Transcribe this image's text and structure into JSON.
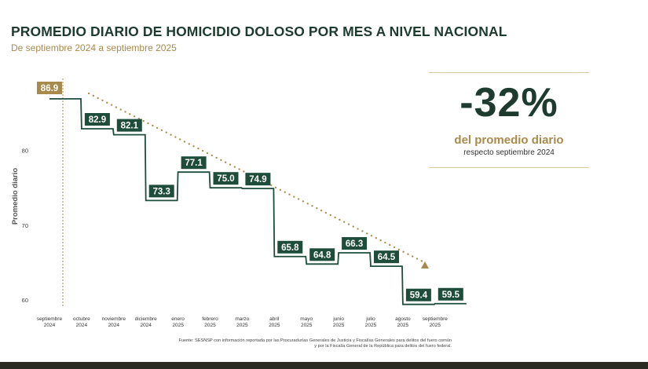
{
  "title": "PROMEDIO DIARIO DE HOMICIDIO DOLOSO POR MES A NIVEL NACIONAL",
  "subtitle": "De septiembre 2024 a septiembre 2025",
  "stat": {
    "value": "-32%",
    "caption": "del promedio diario",
    "subcaption": "respecto septiembre 2024"
  },
  "source": [
    "Fuente: SESNSP con información reportada por las Procuradurías Generales de Justicia y Fiscalías Generales para delitos del fuero común",
    "y por la Fiscalía General de la República para delitos del fuero federal."
  ],
  "colors": {
    "primary": "#1e4d3b",
    "accent": "#a98a4c",
    "text": "#1e3b30"
  },
  "chart_data": {
    "type": "line",
    "step": true,
    "ylabel": "Promedio diario",
    "yticks": [
      60,
      70,
      80
    ],
    "ylim": [
      58.5,
      89
    ],
    "categories": [
      [
        "septiembre",
        "2024"
      ],
      [
        "octubre",
        "2024"
      ],
      [
        "noviembre",
        "2024"
      ],
      [
        "diciembre",
        "2024"
      ],
      [
        "enero",
        "2025"
      ],
      [
        "febrero",
        "2025"
      ],
      [
        "marzo",
        "2025"
      ],
      [
        "abril",
        "2025"
      ],
      [
        "mayo",
        "2025"
      ],
      [
        "junio",
        "2025"
      ],
      [
        "julio",
        "2025"
      ],
      [
        "agosto",
        "2025"
      ],
      [
        "septiembre",
        "2025"
      ]
    ],
    "values": [
      86.9,
      82.9,
      82.1,
      73.3,
      77.1,
      75.0,
      74.9,
      65.8,
      64.8,
      66.3,
      64.5,
      59.4,
      59.5
    ],
    "labels": [
      "86.9",
      "82.9",
      "82.1",
      "73.3",
      "77.1",
      "75.0",
      "74.9",
      "65.8",
      "64.8",
      "66.3",
      "64.5",
      "59.4",
      "59.5"
    ],
    "trend": "dotted arrow from octubre 2024 to septiembre 2025"
  }
}
